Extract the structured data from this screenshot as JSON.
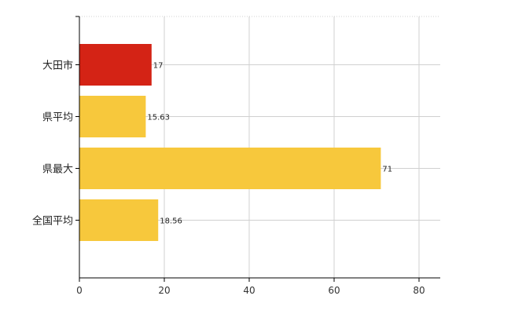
{
  "chart_data": {
    "type": "bar",
    "orientation": "horizontal",
    "categories": [
      "大田市",
      "県平均",
      "県最大",
      "全国平均"
    ],
    "values": [
      17,
      15.63,
      71,
      18.56
    ],
    "value_labels": [
      "17",
      "15.63",
      "71",
      "18.56"
    ],
    "bar_colors": [
      "#d42315",
      "#f7c83c",
      "#f7c83c",
      "#f7c83c"
    ],
    "xlim": [
      0,
      85
    ],
    "x_ticks": [
      0,
      20,
      40,
      60,
      80
    ],
    "x_tick_labels": [
      "0",
      "20",
      "40",
      "60",
      "80"
    ],
    "grid": true,
    "title": "",
    "xlabel": "",
    "ylabel": ""
  },
  "colors": {
    "highlight": "#d42315",
    "default_bar": "#f7c83c",
    "grid": "#d0d0d0",
    "axis": "#000000"
  }
}
